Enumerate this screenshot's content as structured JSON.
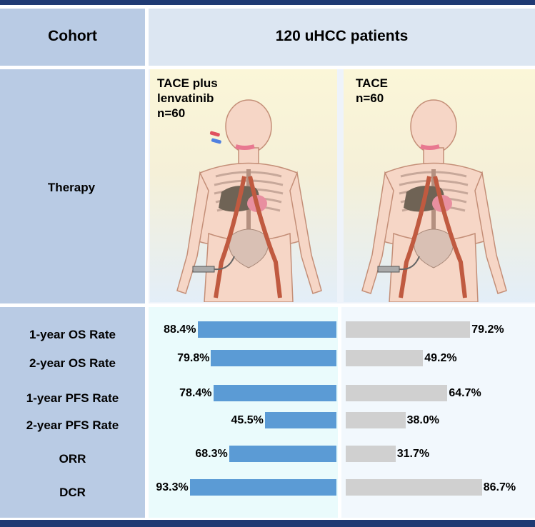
{
  "header": {
    "cohort_label": "Cohort",
    "cohort_value": "120 uHCC patients"
  },
  "therapy": {
    "label": "Therapy",
    "arm1": {
      "title_line1": "TACE plus",
      "title_line2": "lenvatinib",
      "title_line3": "n=60"
    },
    "arm2": {
      "title_line1": "TACE",
      "title_line2": "n=60"
    }
  },
  "outcomes": {
    "labels": [
      "1-year OS Rate",
      "2-year OS Rate",
      "1-year PFS Rate",
      "2-year PFS Rate",
      "ORR",
      "DCR"
    ]
  },
  "chart_data": {
    "type": "bar",
    "categories": [
      "1-year OS Rate",
      "2-year OS Rate",
      "1-year PFS Rate",
      "2-year PFS Rate",
      "ORR",
      "DCR"
    ],
    "series": [
      {
        "name": "TACE plus lenvatinib",
        "values": [
          88.4,
          79.8,
          78.4,
          45.5,
          68.3,
          93.3
        ],
        "labels": [
          "88.4%",
          "79.8%",
          "78.4%",
          "45.5%",
          "68.3%",
          "93.3%"
        ],
        "color": "#5b9bd5"
      },
      {
        "name": "TACE",
        "values": [
          79.2,
          49.2,
          64.7,
          38.0,
          31.7,
          86.7
        ],
        "labels": [
          "79.2%",
          "49.2%",
          "64.7%",
          "38.0%",
          "31.7%",
          "86.7%"
        ],
        "color": "#d0d0d0"
      }
    ],
    "unit": "%"
  }
}
